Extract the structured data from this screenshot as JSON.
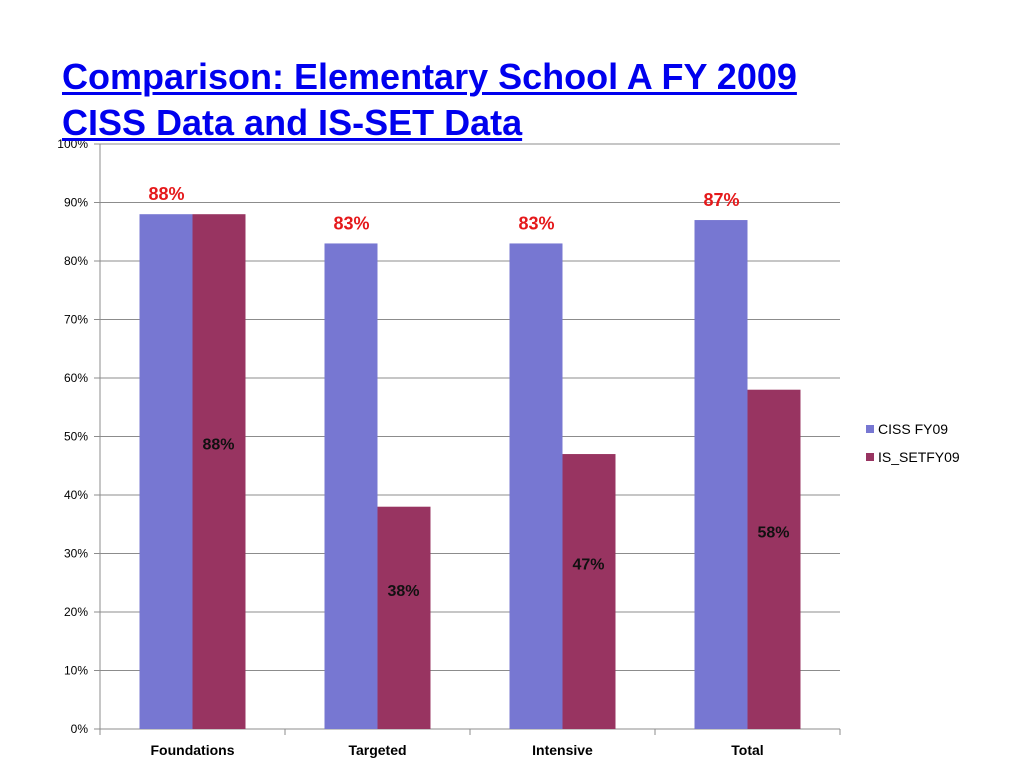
{
  "slide": {
    "title_line1": "Comparison: Elementary School A FY 2009",
    "title_line2": "CISS Data and IS-SET Data"
  },
  "colors": {
    "title": "#0000ee",
    "ciss": "#7777d2",
    "isset": "#983461",
    "label_red": "#e5191b",
    "label_black": "#111111",
    "grid": "#8c8c8c"
  },
  "chart_data": {
    "type": "bar",
    "categories": [
      "Foundations",
      "Targeted",
      "Intensive",
      "Total"
    ],
    "series": [
      {
        "name": "CISS FY09",
        "values": [
          88,
          83,
          83,
          87
        ],
        "data_labels": [
          "88%",
          "83%",
          "83%",
          "87%"
        ]
      },
      {
        "name": "IS_SETFY09",
        "values": [
          88,
          38,
          47,
          58
        ],
        "data_labels": [
          "88%",
          "38%",
          "47%",
          "58%"
        ]
      }
    ],
    "ylim": [
      0,
      100
    ],
    "y_ticks": [
      "0%",
      "10%",
      "20%",
      "30%",
      "40%",
      "50%",
      "60%",
      "70%",
      "80%",
      "90%",
      "100%"
    ],
    "grid": true,
    "legend": "right"
  }
}
